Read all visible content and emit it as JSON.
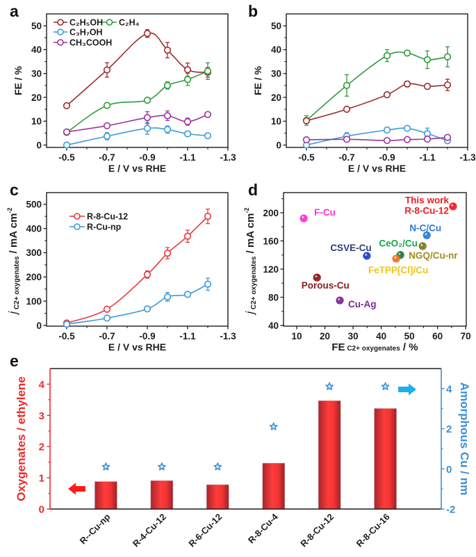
{
  "figure": {
    "panel_labels": [
      "a",
      "b",
      "c",
      "d",
      "e"
    ]
  },
  "chart_data": [
    {
      "panel": "a",
      "type": "line",
      "title": "",
      "xlabel": "E / V vs RHE",
      "ylabel": "FE / %",
      "xlim": [
        -0.4,
        -1.3
      ],
      "ylim": [
        -1,
        55
      ],
      "xticks": [
        -0.5,
        -0.7,
        -0.9,
        -1.1,
        -1.3
      ],
      "xtick_labels": [
        "-0.5",
        "-0.7",
        "-0.9",
        "-1.1",
        "-1.3"
      ],
      "xminor": [
        -0.6,
        -0.8,
        -1.0,
        -1.2
      ],
      "yticks": [
        0,
        10,
        20,
        30,
        40,
        50
      ],
      "ytick_labels": [
        "0",
        "10",
        "20",
        "30",
        "40",
        "50"
      ],
      "yminor": [
        5,
        15,
        25,
        35,
        45
      ],
      "grid": false,
      "legend": "top-left",
      "series": [
        {
          "name": "C₂H₅OH",
          "color": "#9b2a2a",
          "x": [
            -0.5,
            -0.7,
            -0.9,
            -1.0,
            -1.1,
            -1.2
          ],
          "y": [
            16.5,
            31.5,
            46.8,
            39.8,
            31.6,
            30.5
          ],
          "err": [
            0.6,
            3.0,
            1.6,
            3.2,
            2.8,
            2.0
          ]
        },
        {
          "name": "C₂H₄",
          "color": "#2e9b3a",
          "x": [
            -0.5,
            -0.7,
            -0.9,
            -1.0,
            -1.1,
            -1.2
          ],
          "y": [
            5.3,
            16.6,
            18.8,
            25.0,
            27.5,
            31.0
          ],
          "err": [
            1.0,
            0.5,
            0.5,
            1.5,
            2.5,
            3.5
          ]
        },
        {
          "name": "C₃H₇OH",
          "color": "#3a9ad9",
          "x": [
            -0.5,
            -0.7,
            -0.9,
            -1.0,
            -1.1,
            -1.2
          ],
          "y": [
            0.0,
            3.7,
            7.0,
            6.5,
            4.7,
            3.9
          ],
          "err": [
            0.0,
            1.5,
            2.5,
            1.5,
            0.5,
            0.4
          ]
        },
        {
          "name": "CH₃COOH",
          "color": "#9c339c",
          "x": [
            -0.5,
            -0.7,
            -0.9,
            -1.0,
            -1.1,
            -1.2
          ],
          "y": [
            5.5,
            8.1,
            11.5,
            12.3,
            9.8,
            12.8
          ],
          "err": [
            0.5,
            1.0,
            2.5,
            2.0,
            1.5,
            0.5
          ]
        }
      ]
    },
    {
      "panel": "b",
      "type": "line",
      "title": "",
      "xlabel": "E / V vs RHE",
      "ylabel": "FE / %",
      "xlim": [
        -0.4,
        -1.3
      ],
      "ylim": [
        -1,
        55
      ],
      "xticks": [
        -0.5,
        -0.7,
        -0.9,
        -1.1,
        -1.3
      ],
      "xtick_labels": [
        "-0.5",
        "-0.7",
        "-0.9",
        "-1.1",
        "-1.3"
      ],
      "xminor": [
        -0.6,
        -0.8,
        -1.0,
        -1.2
      ],
      "yticks": [
        0,
        10,
        20,
        30,
        40,
        50
      ],
      "ytick_labels": [
        "0",
        "10",
        "20",
        "30",
        "40",
        "50"
      ],
      "yminor": [
        5,
        15,
        25,
        35,
        45
      ],
      "grid": false,
      "legend": "none",
      "series": [
        {
          "name": "C₂H₄",
          "color": "#2e9b3a",
          "x": [
            -0.5,
            -0.7,
            -0.9,
            -1.0,
            -1.1,
            -1.2
          ],
          "y": [
            10.3,
            25.0,
            37.5,
            38.6,
            35.8,
            37.0
          ],
          "err": [
            2.0,
            4.5,
            2.5,
            0.8,
            3.7,
            4.2
          ]
        },
        {
          "name": "C₂H₅OH",
          "color": "#9b2a2a",
          "x": [
            -0.5,
            -0.7,
            -0.9,
            -1.0,
            -1.1,
            -1.2
          ],
          "y": [
            10.2,
            15.0,
            21.1,
            25.6,
            24.6,
            25.2
          ],
          "err": [
            0.5,
            0.5,
            0.5,
            1.2,
            0.5,
            2.4
          ]
        },
        {
          "name": "C₃H₇OH",
          "color": "#3a9ad9",
          "x": [
            -0.5,
            -0.7,
            -0.9,
            -1.0,
            -1.1,
            -1.2
          ],
          "y": [
            0.0,
            3.7,
            6.3,
            7.0,
            4.8,
            1.8
          ],
          "err": [
            0.0,
            1.5,
            0.5,
            0.8,
            2.3,
            0.5
          ]
        },
        {
          "name": "CH₃COOH",
          "color": "#9c339c",
          "x": [
            -0.5,
            -0.7,
            -0.9,
            -1.0,
            -1.1,
            -1.2
          ],
          "y": [
            2.2,
            2.4,
            1.9,
            2.3,
            2.5,
            3.2
          ],
          "err": [
            0.3,
            0.3,
            0.3,
            0.3,
            0.3,
            0.3
          ]
        }
      ]
    },
    {
      "panel": "c",
      "type": "line",
      "title": "",
      "xlabel": "E / V vs RHE",
      "ylabel_parts": {
        "italic": "j",
        "sub": " C2+ oxygenates",
        "main": " / mA cm",
        "sup": "-2"
      },
      "xlim": [
        -0.4,
        -1.3
      ],
      "ylim": [
        -3,
        548
      ],
      "xticks": [
        -0.5,
        -0.7,
        -0.9,
        -1.1,
        -1.3
      ],
      "xtick_labels": [
        "-0.5",
        "-0.7",
        "-0.9",
        "-1.1",
        "-1.3"
      ],
      "xminor": [
        -0.6,
        -0.8,
        -1.0,
        -1.2
      ],
      "yticks": [
        0,
        100,
        200,
        300,
        400,
        500
      ],
      "ytick_labels": [
        "0",
        "100",
        "200",
        "300",
        "400",
        "500"
      ],
      "yminor": [
        50,
        150,
        250,
        350,
        450
      ],
      "grid": false,
      "legend": "top-left",
      "series": [
        {
          "name": "R-8-Cu-12",
          "color": "#e8363a",
          "x": [
            -0.5,
            -0.7,
            -0.9,
            -1.0,
            -1.1,
            -1.2
          ],
          "y": [
            10,
            67,
            210,
            298,
            368,
            450
          ],
          "err": [
            3,
            5,
            15,
            23,
            25,
            30
          ]
        },
        {
          "name": "R-Cu-np",
          "color": "#3b97dd",
          "x": [
            -0.5,
            -0.7,
            -0.9,
            -1.0,
            -1.1,
            -1.2
          ],
          "y": [
            5,
            30,
            68,
            118,
            128,
            170
          ],
          "err": [
            2,
            3,
            5,
            18,
            6,
            25
          ]
        }
      ]
    },
    {
      "panel": "d",
      "type": "scatter",
      "title": "",
      "xlabel_parts": {
        "main": "FE",
        "sub": " C2+ oxygenates",
        "tail": " / %"
      },
      "ylabel_parts": {
        "italic": "j",
        "sub": " C2+ oxygenates",
        "main": " / mA cm",
        "sup": "-2"
      },
      "xlim": [
        5.3,
        70.2
      ],
      "ylim": [
        39,
        228.6
      ],
      "xticks": [
        10,
        20,
        30,
        40,
        50,
        60,
        70
      ],
      "xtick_labels": [
        "10",
        "20",
        "30",
        "40",
        "50",
        "60",
        "70"
      ],
      "xminor": [
        15,
        25,
        35,
        45,
        55,
        65
      ],
      "yticks": [
        40,
        80,
        120,
        160,
        200
      ],
      "ytick_labels": [
        "40",
        "80",
        "120",
        "160",
        "200"
      ],
      "yminor": [
        60,
        100,
        140,
        180,
        220
      ],
      "grid": false,
      "legend": "none",
      "points": [
        {
          "label_lines": [
            "This work",
            "R-8-Cu-12"
          ],
          "x": 65.5,
          "y": 209,
          "point_color": "#ee1c25",
          "label_color": "#ee1c25"
        },
        {
          "label_lines": [
            "N-C/Cu"
          ],
          "x": 56.2,
          "y": 168,
          "point_color": "#2b7bd6",
          "label_color": "#2b7bd6"
        },
        {
          "label_lines": [
            "CSVE-Cu"
          ],
          "x": 34.9,
          "y": 138.8,
          "point_color": "#1f3fd6",
          "label_color": "#2b3f73"
        },
        {
          "label_lines": [
            "CeO₂/Cu"
          ],
          "x": 46.8,
          "y": 140,
          "point_color": "#1e7a3a",
          "label_color": "#1aa64a"
        },
        {
          "label_lines": [
            "NGQ/Cu-nr"
          ],
          "x": 54.7,
          "y": 152.6,
          "point_color": "#7d7a1e",
          "label_color": "#a08c1a"
        },
        {
          "label_lines": [
            "FeTPP[Cl]/Cu"
          ],
          "x": 45.3,
          "y": 134.8,
          "point_color": "#f07020",
          "label_color": "#f2c21c"
        },
        {
          "label_lines": [
            "F-Cu"
          ],
          "x": 12.5,
          "y": 192,
          "point_color": "#ff33cc",
          "label_color": "#ff33cc"
        },
        {
          "label_lines": [
            "Porous-Cu"
          ],
          "x": 17.2,
          "y": 108,
          "point_color": "#8b1a1a",
          "label_color": "#8b1a1a"
        },
        {
          "label_lines": [
            "Cu-Ag"
          ],
          "x": 25.3,
          "y": 75.5,
          "point_color": "#7b2a8f",
          "label_color": "#7b2a8f"
        }
      ]
    },
    {
      "panel": "e",
      "type": "bar",
      "title": "",
      "categories": [
        "R--Cu-np",
        "R-4-Cu-12",
        "R-6-Cu-12",
        "R-8-Cu-4",
        "R-8-Cu-12",
        "R-8-Cu-16"
      ],
      "ylabel_left": "Oxygenates / ethylene",
      "ylabel_right": "Amorphous Cu / nm",
      "ylim_left": [
        0,
        4.5
      ],
      "ylim_right": [
        -2,
        5
      ],
      "yticks_left": [
        0,
        1,
        2,
        3,
        4
      ],
      "ytick_labels_left": [
        "0",
        "1",
        "2",
        "3",
        "4"
      ],
      "yminor_left": [
        0.5,
        1.5,
        2.5,
        3.5
      ],
      "yticks_right": [
        -2,
        0,
        2,
        4
      ],
      "ytick_labels_right": [
        "-2",
        "0",
        "2",
        "4"
      ],
      "yminor_right": [
        -1,
        1,
        3
      ],
      "left_color": "#ee2a2a",
      "right_color": "#3a8fd6",
      "grid": false,
      "series": [
        {
          "name": "Oxygenates / ethylene",
          "axis": "left",
          "type": "bar",
          "values": [
            0.88,
            0.91,
            0.78,
            1.47,
            3.47,
            3.22
          ]
        },
        {
          "name": "Amorphous Cu / nm",
          "axis": "right",
          "type": "star",
          "values": [
            0,
            0,
            0,
            2,
            4,
            4
          ]
        }
      ],
      "annotations": [
        {
          "type": "arrow",
          "direction": "left",
          "points_to": "left axis",
          "color": "#ff1a1a"
        },
        {
          "type": "arrow",
          "direction": "right",
          "points_to": "right axis",
          "color": "#1ab0ee"
        }
      ]
    }
  ]
}
